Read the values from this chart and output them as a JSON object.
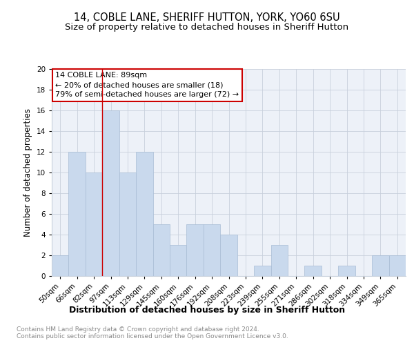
{
  "title": "14, COBLE LANE, SHERIFF HUTTON, YORK, YO60 6SU",
  "subtitle": "Size of property relative to detached houses in Sheriff Hutton",
  "xlabel": "Distribution of detached houses by size in Sheriff Hutton",
  "ylabel": "Number of detached properties",
  "categories": [
    "50sqm",
    "66sqm",
    "82sqm",
    "97sqm",
    "113sqm",
    "129sqm",
    "145sqm",
    "160sqm",
    "176sqm",
    "192sqm",
    "208sqm",
    "223sqm",
    "239sqm",
    "255sqm",
    "271sqm",
    "286sqm",
    "302sqm",
    "318sqm",
    "334sqm",
    "349sqm",
    "365sqm"
  ],
  "values": [
    2,
    12,
    10,
    16,
    10,
    12,
    5,
    3,
    5,
    5,
    4,
    0,
    1,
    3,
    0,
    1,
    0,
    1,
    0,
    2,
    2
  ],
  "bar_color": "#c9d9ed",
  "bar_edge_color": "#a8bcd4",
  "grid_color": "#c8d0dc",
  "bg_color": "#edf1f8",
  "red_line_x": 2.5,
  "annotation_line1": "14 COBLE LANE: 89sqm",
  "annotation_line2": "← 20% of detached houses are smaller (18)",
  "annotation_line3": "79% of semi-detached houses are larger (72) →",
  "annotation_box_color": "#ffffff",
  "annotation_box_edge": "#cc0000",
  "ylim": [
    0,
    20
  ],
  "yticks": [
    0,
    2,
    4,
    6,
    8,
    10,
    12,
    14,
    16,
    18,
    20
  ],
  "footer_line1": "Contains HM Land Registry data © Crown copyright and database right 2024.",
  "footer_line2": "Contains public sector information licensed under the Open Government Licence v3.0.",
  "title_fontsize": 10.5,
  "subtitle_fontsize": 9.5,
  "xlabel_fontsize": 9,
  "ylabel_fontsize": 8.5,
  "tick_fontsize": 7.5,
  "annotation_fontsize": 8,
  "footer_fontsize": 6.5
}
